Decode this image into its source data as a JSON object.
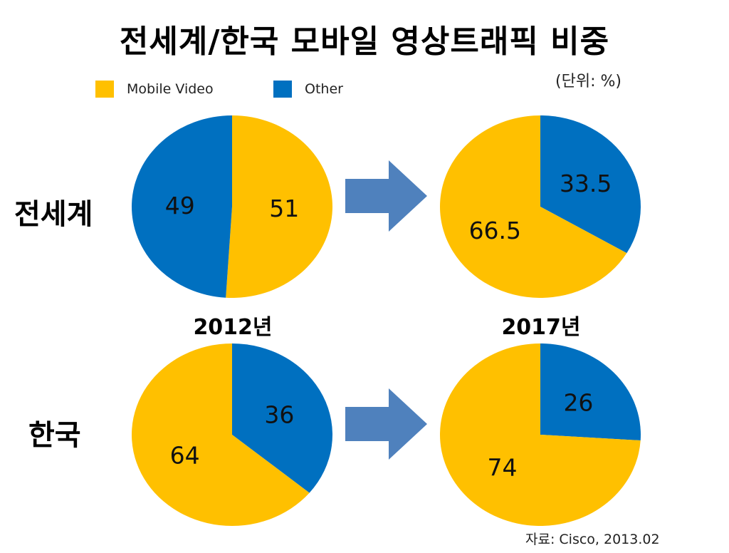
{
  "title": "전세계/한국 모바일 영상트래픽 비중",
  "unit": "(단위: %)",
  "source": "자료: Cisco, 2013.02",
  "row_labels": [
    "전세계",
    "한국"
  ],
  "year_labels": [
    "2012년",
    "2017년"
  ],
  "colors": {
    "Mobile Video": "#FFC000",
    "Other": "#0070C0",
    "arrow": "#4F81BD"
  },
  "chart_data": {
    "type": "pie",
    "legend": {
      "position": "top-left",
      "entries": [
        "Mobile Video",
        "Other"
      ]
    },
    "pies": [
      {
        "row": "전세계",
        "year": "2012년",
        "slices": [
          {
            "name": "Mobile Video",
            "value": 51
          },
          {
            "name": "Other",
            "value": 49
          }
        ]
      },
      {
        "row": "전세계",
        "year": "2017년",
        "slices": [
          {
            "name": "Other",
            "value": 33.5
          },
          {
            "name": "Mobile Video",
            "value": 66.5
          }
        ]
      },
      {
        "row": "한국",
        "year": "2012년",
        "slices": [
          {
            "name": "Other",
            "value": 36
          },
          {
            "name": "Mobile Video",
            "value": 64
          }
        ]
      },
      {
        "row": "한국",
        "year": "2017년",
        "slices": [
          {
            "name": "Other",
            "value": 26
          },
          {
            "name": "Mobile Video",
            "value": 74
          }
        ]
      }
    ]
  }
}
